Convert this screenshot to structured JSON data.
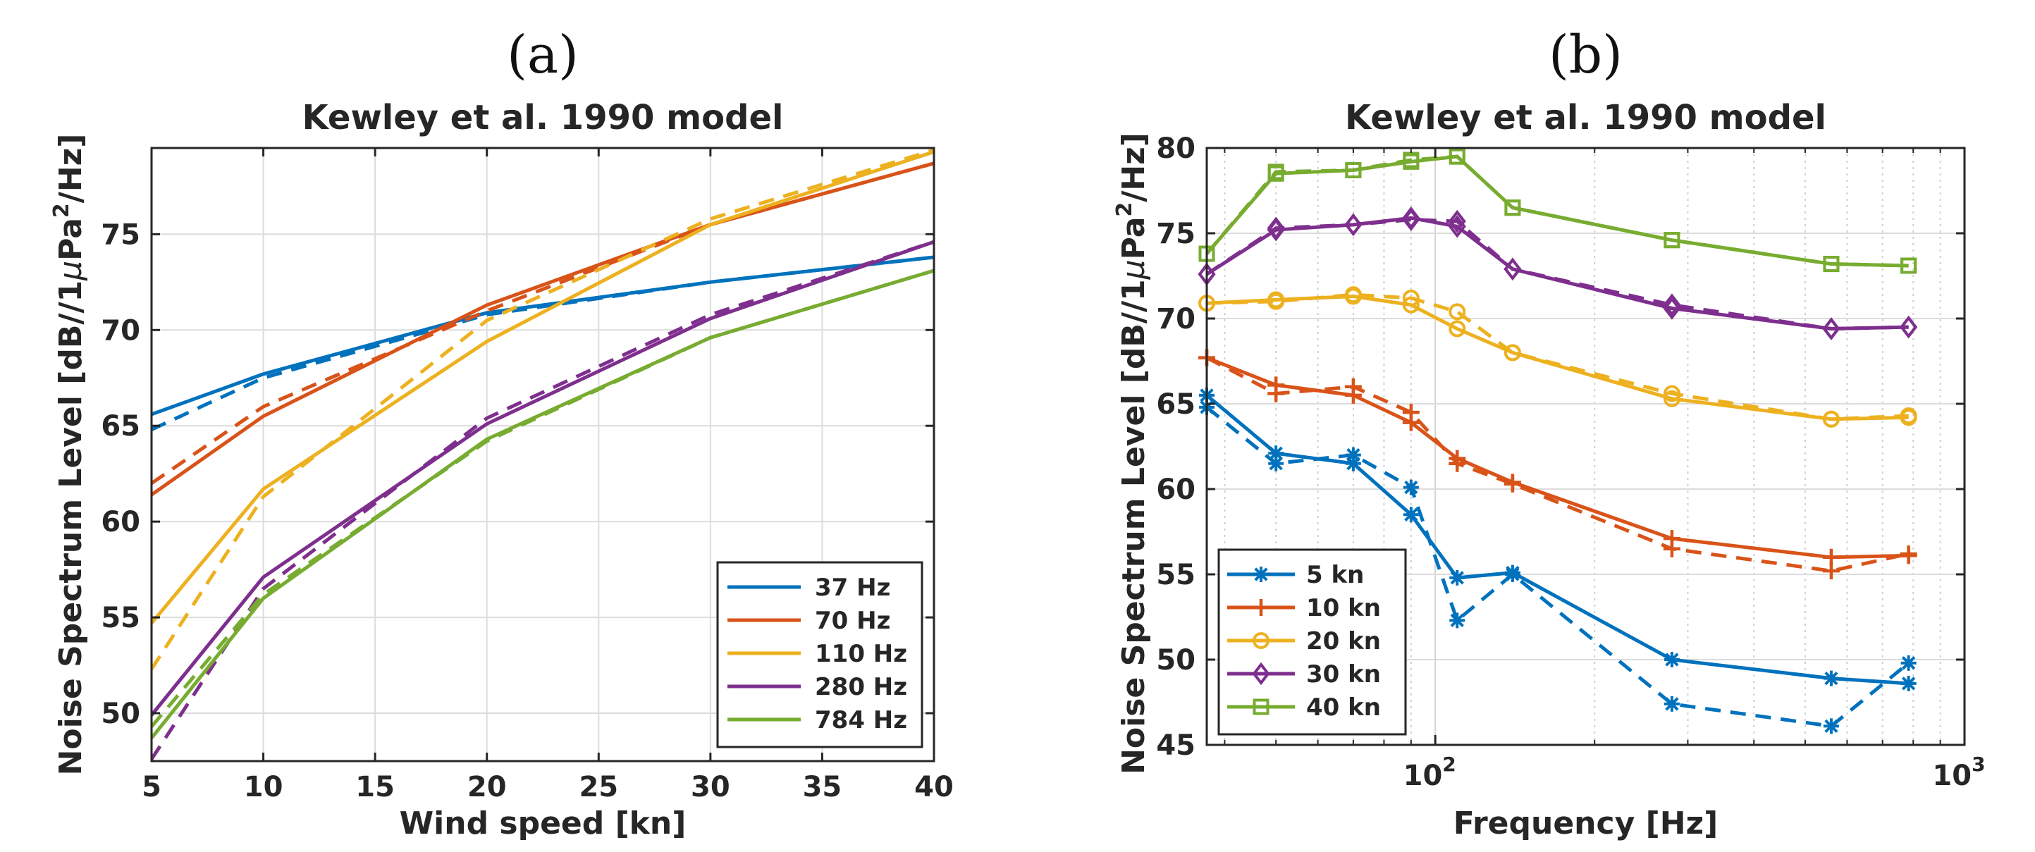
{
  "chart_data": [
    {
      "id": "a",
      "panel_label": "(a)",
      "type": "line",
      "title": "Kewley et al. 1990 model",
      "xlabel": "Wind speed [kn]",
      "ylabel": "Noise Spectrum Level [dB//1μPa²/Hz]",
      "ylabel_parts": {
        "pre": "Noise Spectrum Level [dB//1",
        "mu": "μ",
        "pa": "Pa",
        "sup": "2",
        "post": "/Hz]"
      },
      "xlim": [
        5,
        40
      ],
      "ylim": [
        47.5,
        79.5
      ],
      "xticks": [
        5,
        10,
        15,
        20,
        25,
        30,
        35,
        40
      ],
      "yticks": [
        50,
        55,
        60,
        65,
        70,
        75
      ],
      "xscale": "linear",
      "grid": true,
      "legend_position": "bottom-right",
      "x": [
        5,
        10,
        20,
        30,
        40
      ],
      "series": [
        {
          "name": "37 Hz",
          "color": "#0072BD",
          "solid": [
            65.6,
            67.7,
            70.9,
            72.5,
            73.8
          ],
          "dashed": [
            64.8,
            67.5,
            70.8,
            72.5,
            73.8
          ]
        },
        {
          "name": "70 Hz",
          "color": "#D95319",
          "solid": [
            61.4,
            65.5,
            71.3,
            75.5,
            78.7
          ],
          "dashed": [
            62.0,
            66.0,
            71.0,
            75.5,
            78.7
          ]
        },
        {
          "name": "110 Hz",
          "color": "#EDB120",
          "solid": [
            54.7,
            61.7,
            69.4,
            75.5,
            79.3
          ],
          "dashed": [
            52.3,
            61.3,
            70.5,
            75.8,
            79.4
          ]
        },
        {
          "name": "280 Hz",
          "color": "#7E2F8E",
          "solid": [
            49.9,
            57.1,
            65.1,
            70.6,
            74.6
          ],
          "dashed": [
            47.6,
            56.5,
            65.4,
            70.8,
            74.6
          ]
        },
        {
          "name": "784 Hz",
          "color": "#77AC30",
          "solid": [
            48.7,
            56.0,
            64.3,
            69.6,
            73.1
          ],
          "dashed": [
            49.3,
            56.2,
            64.2,
            69.6,
            73.1
          ]
        }
      ]
    },
    {
      "id": "b",
      "panel_label": "(b)",
      "type": "line",
      "title": "Kewley et al. 1990 model",
      "xlabel": "Frequency [Hz]",
      "ylabel": "Noise Spectrum Level [dB//1μPa²/Hz]",
      "ylabel_parts": {
        "pre": "Noise Spectrum Level [dB//1",
        "mu": "μ",
        "pa": "Pa",
        "sup": "2",
        "post": "/Hz]"
      },
      "xlim": [
        37,
        1000
      ],
      "ylim": [
        45,
        80
      ],
      "xticks_major": [
        {
          "value": 100,
          "base": "10",
          "exp": "2"
        },
        {
          "value": 1000,
          "base": "10",
          "exp": "3"
        }
      ],
      "yticks": [
        45,
        50,
        55,
        60,
        65,
        70,
        75,
        80
      ],
      "xscale": "log",
      "grid": true,
      "legend_position": "bottom-left",
      "series": [
        {
          "name": "5 kn",
          "color": "#0072BD",
          "marker": "asterisk",
          "solid": {
            "x": [
              37,
              50,
              70,
              90,
              110,
              140,
              280,
              560,
              784
            ],
            "y": [
              65.5,
              62.1,
              61.5,
              58.5,
              54.8,
              55.1,
              50.0,
              48.9,
              48.6
            ]
          },
          "dashed": {
            "x": [
              37,
              50,
              70,
              90,
              110,
              140,
              280,
              560,
              784
            ],
            "y": [
              64.8,
              61.5,
              62.0,
              60.1,
              52.3,
              55.0,
              47.4,
              46.1,
              49.8
            ]
          }
        },
        {
          "name": "10 kn",
          "color": "#D95319",
          "marker": "plus",
          "solid": {
            "x": [
              37,
              50,
              70,
              90,
              110,
              140,
              280,
              560,
              784
            ],
            "y": [
              67.7,
              66.1,
              65.5,
              63.9,
              61.8,
              60.4,
              57.1,
              56.0,
              56.1
            ]
          },
          "dashed": {
            "x": [
              37,
              50,
              70,
              90,
              110,
              140,
              280,
              560,
              784
            ],
            "y": [
              67.7,
              65.6,
              66.0,
              64.5,
              61.5,
              60.3,
              56.5,
              55.2,
              56.2
            ]
          }
        },
        {
          "name": "20 kn",
          "color": "#EDB120",
          "marker": "circle",
          "solid": {
            "x": [
              37,
              50,
              70,
              90,
              110,
              140,
              280,
              560,
              784
            ],
            "y": [
              70.9,
              71.1,
              71.3,
              70.8,
              69.4,
              68.0,
              65.3,
              64.1,
              64.2
            ]
          },
          "dashed": {
            "x": [
              37,
              50,
              70,
              90,
              110,
              140,
              280,
              560,
              784
            ],
            "y": [
              70.9,
              71.0,
              71.4,
              71.2,
              70.4,
              68.0,
              65.6,
              64.1,
              64.3
            ]
          }
        },
        {
          "name": "30 kn",
          "color": "#7E2F8E",
          "marker": "diamond",
          "solid": {
            "x": [
              37,
              50,
              70,
              90,
              110,
              140,
              280,
              560,
              784
            ],
            "y": [
              72.6,
              75.2,
              75.5,
              75.9,
              75.4,
              72.9,
              70.6,
              69.4,
              69.5
            ]
          },
          "dashed": {
            "x": [
              37,
              50,
              70,
              90,
              110,
              140,
              280,
              560,
              784
            ],
            "y": [
              72.6,
              75.3,
              75.5,
              75.8,
              75.7,
              72.9,
              70.8,
              69.4,
              69.5
            ]
          }
        },
        {
          "name": "40 kn",
          "color": "#77AC30",
          "marker": "square",
          "solid": {
            "x": [
              37,
              50,
              70,
              90,
              110,
              140,
              280,
              560,
              784
            ],
            "y": [
              73.8,
              78.5,
              78.7,
              79.2,
              79.5,
              76.5,
              74.6,
              73.2,
              73.1
            ]
          },
          "dashed": {
            "x": [
              37,
              50,
              70,
              90,
              110,
              140,
              280,
              560,
              784
            ],
            "y": [
              73.8,
              78.6,
              78.7,
              79.3,
              79.5,
              76.5,
              74.6,
              73.2,
              73.1
            ]
          }
        }
      ]
    }
  ]
}
